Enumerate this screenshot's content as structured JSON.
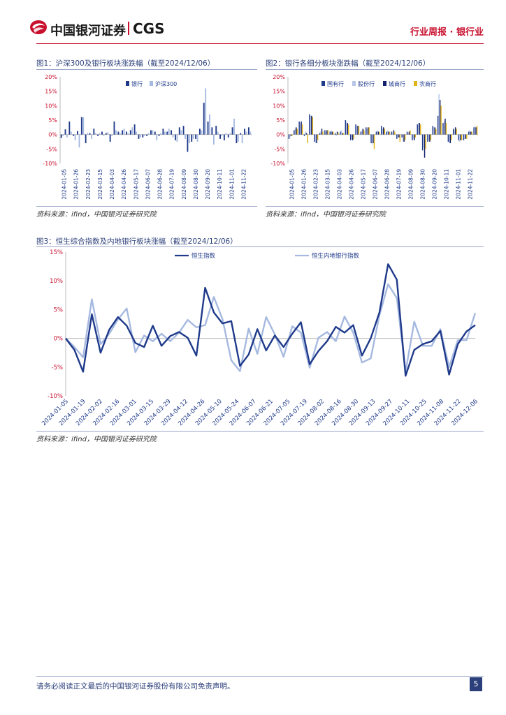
{
  "header": {
    "logo_cn": "中国银河证券",
    "logo_en": "CGS",
    "report_tag": "行业周报 · 银行业"
  },
  "figures": {
    "fig1_title": "图1：沪深300及银行板块涨跌幅（截至2024/12/06）",
    "fig2_title": "图2：银行各细分板块涨跌幅（截至2024/12/06）",
    "fig3_title": "图3：恒生综合指数及内地银行板块涨幅（截至2024/12/06）",
    "source1": "资料来源：ifind，中国银河证券研究院",
    "source2": "资料来源：ifind，中国银河证券研究院",
    "source3": "资料来源：ifind，中国银河证券研究院"
  },
  "colors": {
    "navy": "#1f3a8a",
    "light_blue": "#a6b9e0",
    "dark_navy": "#14206b",
    "gold": "#e0b41a",
    "red": "#c8102e"
  },
  "footer": {
    "disclaimer": "请务必阅读正文最后的中国银河证券股份有限公司免责声明。",
    "page": "5"
  },
  "chart_data": [
    {
      "id": "fig1",
      "type": "bar",
      "title": "沪深300及银行板块涨跌幅（截至2024/12/06）",
      "ylim": [
        -10,
        20
      ],
      "yticks": [
        "-10%",
        "-5%",
        "0%",
        "5%",
        "10%",
        "15%",
        "20%"
      ],
      "xticks": [
        "2024-01-05",
        "2024-01-26",
        "2024-02-23",
        "2024-03-15",
        "2024-04-03",
        "2024-04-26",
        "2024-05-17",
        "2024-06-07",
        "2024-06-28",
        "2024-07-19",
        "2024-08-09",
        "2024-08-30",
        "2024-09-20",
        "2024-10-11",
        "2024-11-01",
        "2024-11-22"
      ],
      "series": [
        {
          "name": "银行",
          "values": [
            -1.2,
            1.8,
            4.5,
            -0.5,
            1.2,
            6.0,
            -3.0,
            0.5,
            2.0,
            -0.5,
            1.0,
            0.5,
            -2.5,
            4.5,
            1.0,
            1.5,
            1.0,
            1.5,
            3.5,
            -1.5,
            -1.0,
            -0.5,
            1.5,
            1.0,
            -0.5,
            2.0,
            1.0,
            1.5,
            -2.0,
            2.5,
            3.0,
            -6.0,
            -2.5,
            -1.5,
            2.0,
            11.0,
            4.5,
            2.5,
            3.0,
            -1.5,
            -2.0,
            -1.0,
            2.5,
            -3.0,
            0.5,
            2.0,
            2.5
          ]
        },
        {
          "name": "沪深300",
          "values": [
            -0.5,
            -1.0,
            1.0,
            -2.0,
            -4.5,
            6.0,
            0.5,
            -1.5,
            0.5,
            0.5,
            -0.5,
            0.8,
            -0.5,
            1.5,
            0.5,
            2.0,
            0.5,
            2.5,
            1.0,
            -1.0,
            -0.5,
            0.5,
            1.5,
            -2.0,
            0.5,
            1.0,
            2.0,
            -1.0,
            -2.5,
            1.5,
            -1.5,
            -3.0,
            -1.5,
            -2.5,
            1.5,
            16.0,
            7.0,
            -3.5,
            1.0,
            -0.5,
            0.5,
            0.5,
            5.5,
            -2.5,
            -3.0,
            1.0,
            1.0
          ]
        }
      ]
    },
    {
      "id": "fig2",
      "type": "bar",
      "title": "银行各细分板块涨跌幅（截至2024/12/06）",
      "ylim": [
        -10,
        20
      ],
      "yticks": [
        "-10%",
        "-5%",
        "0%",
        "5%",
        "10%",
        "15%",
        "20%"
      ],
      "xticks": [
        "2024-01-05",
        "2024-01-26",
        "2024-02-23",
        "2024-03-15",
        "2024-04-03",
        "2024-04-26",
        "2024-05-17",
        "2024-06-07",
        "2024-06-28",
        "2024-07-19",
        "2024-08-09",
        "2024-08-30",
        "2024-09-20",
        "2024-10-11",
        "2024-11-01",
        "2024-11-22"
      ],
      "series": [
        {
          "name": "国有行",
          "values": [
            -1.5,
            1.5,
            4.5,
            -0.5,
            7.0,
            -2.5,
            0.5,
            1.5,
            1.0,
            0.5,
            1.0,
            5.0,
            -2.0,
            3.5,
            1.0,
            2.5,
            -3.0,
            1.0,
            3.0,
            1.0,
            1.0,
            -1.5,
            -1.0,
            1.0,
            -2.0,
            3.5,
            -5.5,
            -2.5,
            3.0,
            6.5,
            4.0,
            -2.5,
            2.0,
            -2.0,
            -2.0,
            1.0,
            2.5
          ]
        },
        {
          "name": "股份行",
          "values": [
            -1.0,
            2.0,
            4.0,
            1.0,
            6.5,
            -3.0,
            1.0,
            1.0,
            1.5,
            -0.5,
            1.5,
            4.5,
            -1.5,
            3.0,
            1.5,
            2.0,
            -3.5,
            1.5,
            2.0,
            1.5,
            0.5,
            -1.0,
            -2.5,
            0.5,
            -1.5,
            4.0,
            -4.5,
            -2.0,
            2.5,
            14.0,
            4.5,
            -3.0,
            1.5,
            -2.5,
            -1.5,
            1.5,
            3.0
          ]
        },
        {
          "name": "城商行",
          "values": [
            -0.5,
            2.5,
            4.5,
            0.5,
            6.5,
            -3.0,
            2.0,
            1.5,
            1.0,
            1.0,
            0.5,
            4.0,
            -2.0,
            3.0,
            2.0,
            2.5,
            -3.0,
            1.0,
            2.5,
            1.0,
            1.5,
            -1.0,
            -2.5,
            1.0,
            -2.0,
            4.0,
            -8.0,
            -2.5,
            2.5,
            12.0,
            5.5,
            -3.0,
            2.5,
            -2.0,
            -1.5,
            1.0,
            2.5
          ]
        },
        {
          "name": "农商行",
          "values": [
            -0.5,
            2.0,
            3.5,
            -3.0,
            6.0,
            -2.0,
            1.0,
            1.5,
            1.0,
            0.5,
            0.5,
            3.5,
            -1.5,
            3.0,
            1.5,
            2.5,
            -5.0,
            1.0,
            2.0,
            1.0,
            1.0,
            -2.5,
            -2.0,
            1.5,
            -1.0,
            3.5,
            -5.0,
            -2.0,
            2.0,
            10.0,
            4.0,
            -2.0,
            2.0,
            -2.0,
            -1.5,
            1.0,
            3.0
          ]
        }
      ]
    },
    {
      "id": "fig3",
      "type": "line",
      "title": "恒生综合指数及内地银行板块涨幅（截至2024/12/06）",
      "ylim": [
        -10,
        15
      ],
      "yticks": [
        "-10%",
        "-5%",
        "0%",
        "5%",
        "10%",
        "15%"
      ],
      "xticks": [
        "2024-01-05",
        "2024-01-19",
        "2024-02-02",
        "2024-02-16",
        "2024-03-01",
        "2024-03-15",
        "2024-03-29",
        "2024-04-12",
        "2024-04-26",
        "2024-05-10",
        "2024-05-24",
        "2024-06-07",
        "2024-06-21",
        "2024-07-05",
        "2024-07-19",
        "2024-08-02",
        "2024-08-16",
        "2024-08-30",
        "2024-09-13",
        "2024-09-27",
        "2024-10-11",
        "2024-10-25",
        "2024-11-08",
        "2024-11-22",
        "2024-12-06"
      ],
      "series": [
        {
          "name": "恒生指数",
          "values": [
            0,
            -2,
            -5.8,
            4.2,
            -2.5,
            1.5,
            3.7,
            2.2,
            -0.8,
            -1.5,
            2.2,
            -1.3,
            0.4,
            1.1,
            0.1,
            -3.0,
            8.8,
            4.5,
            2.6,
            3.0,
            -4.8,
            -2.8,
            1.6,
            -2.1,
            0.5,
            -1.5,
            0.8,
            2.8,
            -4.5,
            -2.2,
            -0.5,
            2.0,
            1.0,
            2.3,
            -3.0,
            0,
            4.5,
            12.9,
            10.2,
            -6.5,
            -2.0,
            -1.0,
            -0.5,
            1.3,
            -6.3,
            -1.0,
            1.2,
            2.3
          ]
        },
        {
          "name": "恒生内地银行指数",
          "values": [
            0,
            -1.5,
            -3.3,
            6.8,
            -1.0,
            0.8,
            3.3,
            5.2,
            -2.4,
            0.5,
            -0.5,
            0.8,
            -0.5,
            1.0,
            3.2,
            1.9,
            2.3,
            7.2,
            3.3,
            -3.8,
            -5.7,
            1.7,
            -2.7,
            3.7,
            0.7,
            -3.2,
            2.1,
            1.0,
            -5.1,
            0.1,
            1.1,
            -0.5,
            3.8,
            1.0,
            -4.2,
            -3.5,
            4.0,
            9.4,
            7.0,
            -5.8,
            2.9,
            -1.3,
            -1.3,
            1.6,
            -5.0,
            -0.3,
            -0.3,
            4.4
          ]
        }
      ]
    }
  ]
}
